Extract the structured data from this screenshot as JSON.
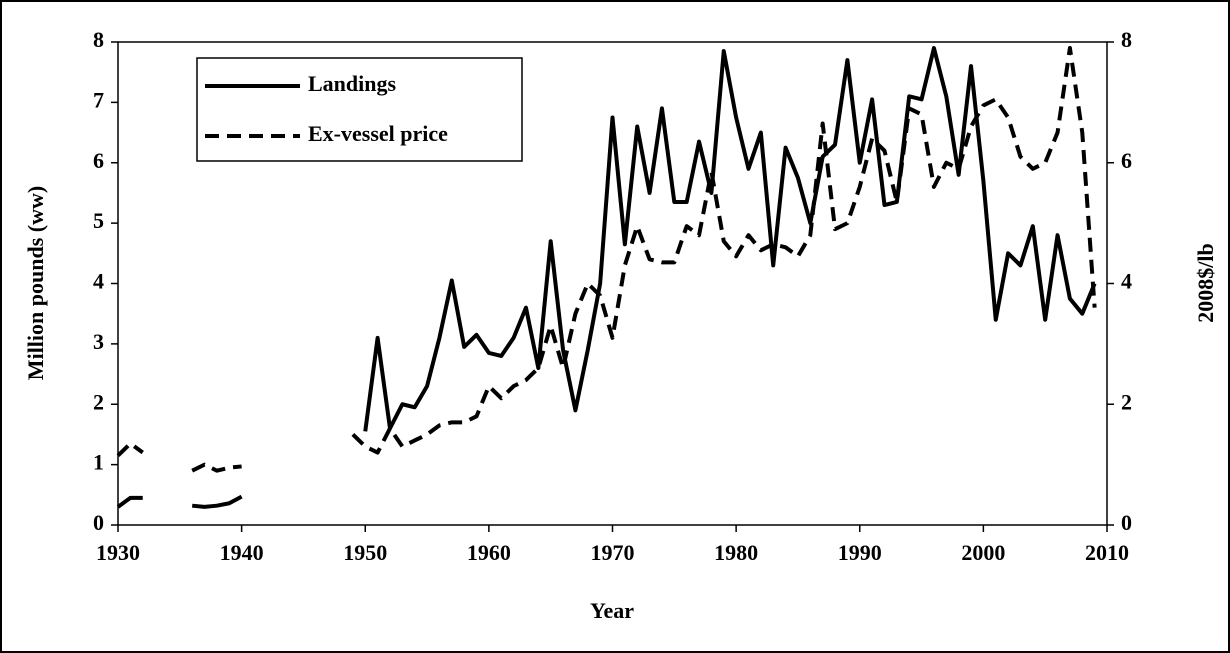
{
  "chart_data": {
    "type": "line",
    "x_label": "Year",
    "y_label": "Million pounds (ww)",
    "y2_label": "2008$/lb",
    "x": [
      1930,
      1931,
      1932,
      1933,
      1934,
      1935,
      1936,
      1937,
      1938,
      1939,
      1940,
      1941,
      1942,
      1943,
      1944,
      1945,
      1946,
      1947,
      1948,
      1949,
      1950,
      1951,
      1952,
      1953,
      1954,
      1955,
      1956,
      1957,
      1958,
      1959,
      1960,
      1961,
      1962,
      1963,
      1964,
      1965,
      1966,
      1967,
      1968,
      1969,
      1970,
      1971,
      1972,
      1973,
      1974,
      1975,
      1976,
      1977,
      1978,
      1979,
      1980,
      1981,
      1982,
      1983,
      1984,
      1985,
      1986,
      1987,
      1988,
      1989,
      1990,
      1991,
      1992,
      1993,
      1994,
      1995,
      1996,
      1997,
      1998,
      1999,
      2000,
      2001,
      2002,
      2003,
      2004,
      2005,
      2006,
      2007,
      2008,
      2009
    ],
    "series": [
      {
        "name": "Landings",
        "color": "#000000",
        "line_style": "solid",
        "axis": "y",
        "values": [
          0.3,
          0.45,
          0.45,
          null,
          null,
          null,
          0.32,
          0.3,
          0.32,
          0.36,
          0.47,
          null,
          null,
          null,
          null,
          null,
          null,
          null,
          null,
          null,
          1.55,
          3.1,
          1.6,
          2.0,
          1.95,
          2.3,
          3.1,
          4.05,
          2.95,
          3.15,
          2.85,
          2.8,
          3.1,
          3.6,
          2.6,
          4.7,
          2.9,
          1.9,
          2.9,
          4.0,
          6.75,
          4.65,
          6.6,
          5.5,
          6.9,
          5.35,
          5.35,
          6.35,
          5.5,
          7.85,
          6.75,
          5.9,
          6.5,
          4.3,
          6.25,
          5.75,
          5.0,
          6.1,
          6.3,
          7.7,
          6.0,
          7.05,
          5.3,
          5.35,
          7.1,
          7.05,
          7.9,
          7.1,
          5.8,
          7.6,
          5.7,
          3.4,
          4.5,
          4.3,
          4.95,
          3.4,
          4.8,
          3.75,
          3.5,
          4.0
        ]
      },
      {
        "name": "Ex-vessel price",
        "color": "#000000",
        "line_style": "dashed",
        "axis": "y2",
        "values": [
          1.15,
          1.35,
          1.2,
          null,
          null,
          null,
          0.9,
          1.0,
          0.9,
          0.95,
          0.97,
          null,
          null,
          null,
          null,
          null,
          null,
          null,
          null,
          1.5,
          1.3,
          1.2,
          1.6,
          1.3,
          1.4,
          1.5,
          1.65,
          1.7,
          1.7,
          1.8,
          2.3,
          2.1,
          2.3,
          2.4,
          2.6,
          3.3,
          2.6,
          3.5,
          4.0,
          3.8,
          3.1,
          4.3,
          4.95,
          4.4,
          4.35,
          4.35,
          4.95,
          4.8,
          5.85,
          4.7,
          4.45,
          4.8,
          4.55,
          4.65,
          4.6,
          4.45,
          4.8,
          6.65,
          4.9,
          5.0,
          5.6,
          6.4,
          6.2,
          5.35,
          6.9,
          6.8,
          5.6,
          6.0,
          5.9,
          6.6,
          6.95,
          7.05,
          6.75,
          6.1,
          5.9,
          6.0,
          6.5,
          7.9,
          6.5,
          3.6
        ]
      }
    ],
    "xlim": [
      1930,
      2010
    ],
    "xticks": [
      1930,
      1940,
      1950,
      1960,
      1970,
      1980,
      1990,
      2000,
      2010
    ],
    "ylim": [
      0,
      8
    ],
    "yticks": [
      0,
      1,
      2,
      3,
      4,
      5,
      6,
      7,
      8
    ],
    "y2lim": [
      0,
      8
    ],
    "y2ticks": [
      0,
      2,
      4,
      6,
      8
    ],
    "grid": false,
    "legend": "upper-left"
  }
}
